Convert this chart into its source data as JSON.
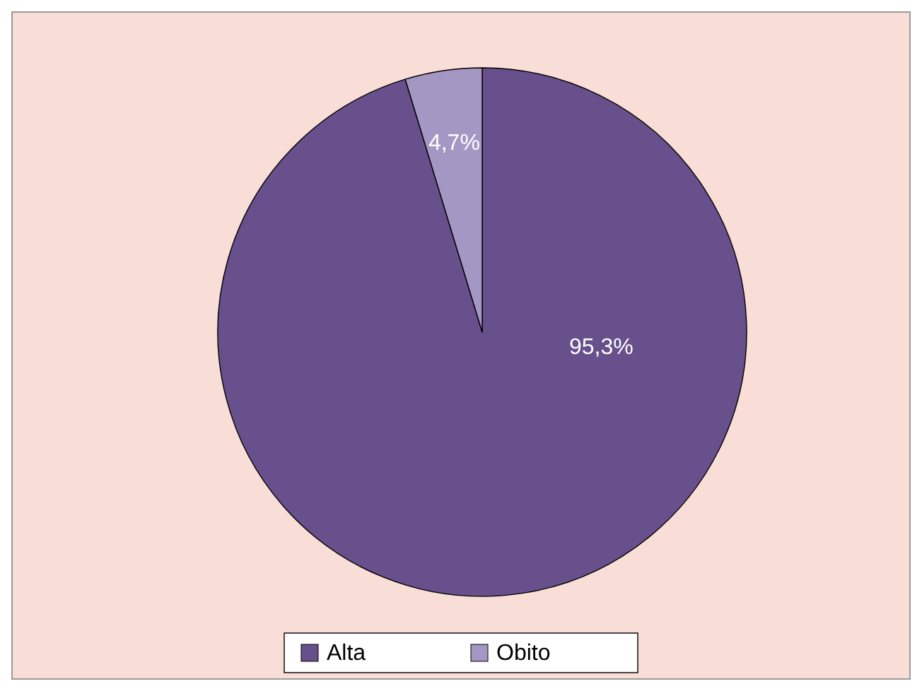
{
  "chart_data": {
    "type": "pie",
    "categories": [
      "Alta",
      "Obito"
    ],
    "values": [
      95.3,
      4.7
    ],
    "colors": [
      "#68508c",
      "#a597c4"
    ],
    "value_labels": [
      "95,3%",
      "4,7%"
    ],
    "legend": "bottom"
  }
}
